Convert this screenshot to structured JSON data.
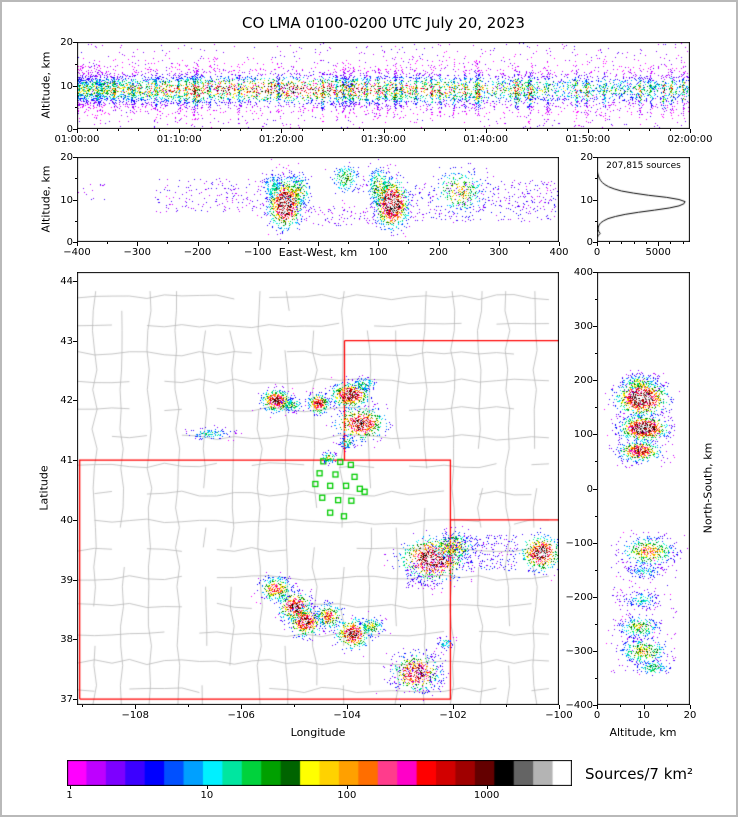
{
  "title": "CO LMA 0100-0200 UTC July 20, 2023",
  "colorbar": {
    "label": "Sources/7 km²",
    "scale": "log",
    "ticks": [
      {
        "f": 0.005,
        "label": "1"
      },
      {
        "f": 0.277,
        "label": "10"
      },
      {
        "f": 0.554,
        "label": "100"
      },
      {
        "f": 0.831,
        "label": "1000"
      }
    ],
    "colors": [
      "#FF00FF",
      "#BE00FF",
      "#7D00FF",
      "#3C00FF",
      "#0000FF",
      "#0050FF",
      "#00A0FF",
      "#00F0FF",
      "#00E6A0",
      "#00D23C",
      "#00A000",
      "#006400",
      "#FFFF00",
      "#FFD200",
      "#FFA000",
      "#FF6E00",
      "#FF3C8C",
      "#FF00C8",
      "#FF0000",
      "#D20000",
      "#A00000",
      "#640000",
      "#000000",
      "#646464",
      "#B4B4B4",
      "#FFFFFF"
    ]
  },
  "chart_data": [
    {
      "id": "time_height",
      "type": "scatter-density",
      "xlabel": "",
      "ylabel": "Altitude, km",
      "xlim": [
        0,
        3600
      ],
      "ylim": [
        0,
        20
      ],
      "xticks": [
        {
          "v": 0,
          "label": "01:00:00"
        },
        {
          "v": 600,
          "label": "01:10:00"
        },
        {
          "v": 1200,
          "label": "01:20:00"
        },
        {
          "v": 1800,
          "label": "01:30:00"
        },
        {
          "v": 2400,
          "label": "01:40:00"
        },
        {
          "v": 3000,
          "label": "01:50:00"
        },
        {
          "v": 3600,
          "label": "02:00:00"
        }
      ],
      "xminor_step": 120,
      "yticks": [
        {
          "v": 0,
          "label": "0"
        },
        {
          "v": 10,
          "label": "10"
        },
        {
          "v": 20,
          "label": "20"
        }
      ],
      "yminor": [
        5,
        15
      ],
      "layers": [
        {
          "type": "sparse",
          "n": 900,
          "x0": 0,
          "x1": 3600,
          "y0": 0.3,
          "y1": 19.7,
          "level": 0.06
        },
        {
          "type": "band",
          "n": 5200,
          "x0": 0,
          "x1": 3600,
          "skew": 1.5,
          "y_mean": 9.2,
          "y_sigma": 2.3,
          "base": 0.3,
          "amp": 0.4,
          "cx": 1300,
          "csx": 1100
        },
        {
          "type": "stripes",
          "count": 46,
          "x0": 80,
          "x1": 3580,
          "n_per": 55,
          "y_mean": 8.8,
          "y_sigma": 3.0,
          "level": 0.55
        }
      ]
    },
    {
      "id": "east_west",
      "type": "scatter-density",
      "xlabel": "East-West, km",
      "xlabel_inline": true,
      "ylabel": "Altitude, km",
      "xlim": [
        -400,
        400
      ],
      "ylim": [
        0,
        20
      ],
      "xticks": [
        {
          "v": -400,
          "label": "−400"
        },
        {
          "v": -300,
          "label": "−300"
        },
        {
          "v": -200,
          "label": "−200"
        },
        {
          "v": -100,
          "label": "−100"
        },
        {
          "v": 0,
          "label": ""
        },
        {
          "v": 100,
          "label": "100"
        },
        {
          "v": 200,
          "label": "200"
        },
        {
          "v": 300,
          "label": "300"
        },
        {
          "v": 400,
          "label": "400"
        }
      ],
      "xminor_step": 50,
      "yticks": [
        {
          "v": 0,
          "label": "0"
        },
        {
          "v": 10,
          "label": "10"
        },
        {
          "v": 20,
          "label": "20"
        }
      ],
      "yminor": [
        5,
        15
      ],
      "layers": [
        {
          "type": "sparse",
          "n": 170,
          "x0": -270,
          "x1": -90,
          "y0": 7,
          "y1": 15,
          "level": 0.08
        },
        {
          "type": "sparse",
          "n": 90,
          "x0": -30,
          "x1": 100,
          "y0": 4,
          "y1": 9,
          "level": 0.07
        },
        {
          "type": "sparse",
          "n": 14,
          "x0": -400,
          "x1": -355,
          "y0": 10,
          "y1": 14,
          "level": 0.07
        },
        {
          "type": "blob",
          "x": -75,
          "y": 13,
          "sx": 10,
          "sy": 2.0,
          "n": 160,
          "core": 0.35
        },
        {
          "type": "blob",
          "x": -35,
          "y": 12,
          "sx": 12,
          "sy": 2.2,
          "n": 260,
          "core": 0.5
        },
        {
          "type": "blob",
          "x": -55,
          "y": 9,
          "sx": 13,
          "sy": 2.7,
          "n": 900,
          "core": 1.0
        },
        {
          "type": "blob",
          "x": 45,
          "y": 15,
          "sx": 12,
          "sy": 1.8,
          "n": 170,
          "core": 0.45
        },
        {
          "type": "blob",
          "x": 100,
          "y": 13,
          "sx": 10,
          "sy": 2.4,
          "n": 260,
          "core": 0.5
        },
        {
          "type": "blob",
          "x": 122,
          "y": 9,
          "sx": 13,
          "sy": 2.7,
          "n": 900,
          "core": 1.0
        },
        {
          "type": "blob",
          "x": 235,
          "y": 12,
          "sx": 22,
          "sy": 2.6,
          "n": 320,
          "core": 0.55
        },
        {
          "type": "sparse",
          "n": 280,
          "x0": 140,
          "x1": 400,
          "y0": 5,
          "y1": 14,
          "level": 0.1
        },
        {
          "type": "sparse",
          "n": 70,
          "x0": 300,
          "x1": 400,
          "y0": 8,
          "y1": 15,
          "level": 0.07
        }
      ]
    },
    {
      "id": "altitude_histogram",
      "type": "line",
      "annotation": "207,815 sources",
      "xlabel": "",
      "ylabel": "",
      "line_color": "#000000",
      "xlim": [
        0,
        7600
      ],
      "ylim": [
        0,
        20
      ],
      "xticks": [
        {
          "v": 0,
          "label": "0"
        },
        {
          "v": 5000,
          "label": "5000"
        }
      ],
      "xminor_step": 1000,
      "yticks": [
        {
          "v": 0,
          "label": "0"
        },
        {
          "v": 10,
          "label": "10"
        },
        {
          "v": 20,
          "label": "20"
        }
      ],
      "yminor": [
        5,
        15
      ],
      "profile": [
        [
          0,
          0
        ],
        [
          0.5,
          5
        ],
        [
          1,
          30
        ],
        [
          1.5,
          90
        ],
        [
          2,
          260
        ],
        [
          2.5,
          140
        ],
        [
          3,
          90
        ],
        [
          3.5,
          110
        ],
        [
          4,
          170
        ],
        [
          4.5,
          300
        ],
        [
          5,
          550
        ],
        [
          5.5,
          900
        ],
        [
          6,
          1500
        ],
        [
          6.5,
          2300
        ],
        [
          7,
          3400
        ],
        [
          7.5,
          4700
        ],
        [
          8,
          5900
        ],
        [
          8.5,
          6700
        ],
        [
          9,
          7100
        ],
        [
          9.5,
          7200
        ],
        [
          10,
          6700
        ],
        [
          10.5,
          5700
        ],
        [
          11,
          4200
        ],
        [
          11.5,
          3000
        ],
        [
          12,
          2000
        ],
        [
          12.5,
          1400
        ],
        [
          13,
          950
        ],
        [
          13.5,
          650
        ],
        [
          14,
          430
        ],
        [
          14.5,
          290
        ],
        [
          15,
          190
        ],
        [
          15.5,
          120
        ],
        [
          16,
          70
        ],
        [
          16.5,
          40
        ],
        [
          17,
          22
        ],
        [
          17.5,
          10
        ],
        [
          18,
          4
        ],
        [
          19,
          1
        ],
        [
          20,
          0
        ]
      ]
    },
    {
      "id": "plan_view",
      "type": "scatter-density",
      "xlabel": "Longitude",
      "ylabel": "Latitude",
      "xlim": [
        -109.1,
        -100.0
      ],
      "ylim": [
        36.9,
        44.15
      ],
      "xticks": [
        {
          "v": -108,
          "label": "−108"
        },
        {
          "v": -106,
          "label": "−106"
        },
        {
          "v": -104,
          "label": "−104"
        },
        {
          "v": -102,
          "label": "−102"
        },
        {
          "v": -100,
          "label": "−100"
        }
      ],
      "xminor_step": 1,
      "yticks": [
        {
          "v": 37,
          "label": "37"
        },
        {
          "v": 38,
          "label": "38"
        },
        {
          "v": 39,
          "label": "39"
        },
        {
          "v": 40,
          "label": "40"
        },
        {
          "v": 41,
          "label": "41"
        },
        {
          "v": 42,
          "label": "42"
        },
        {
          "v": 43,
          "label": "43"
        },
        {
          "v": 44,
          "label": "44"
        }
      ],
      "state_border_color": "#FF0000",
      "station_color": "#00CC00",
      "county_grid": {
        "color": "#B8B8B8",
        "lon_step": 0.52,
        "lat_step": 0.47
      },
      "stations": [
        [
          -104.45,
          40.98
        ],
        [
          -104.13,
          40.97
        ],
        [
          -103.93,
          40.92
        ],
        [
          -104.52,
          40.78
        ],
        [
          -104.22,
          40.76
        ],
        [
          -103.86,
          40.72
        ],
        [
          -104.6,
          40.6
        ],
        [
          -104.32,
          40.57
        ],
        [
          -104.02,
          40.57
        ],
        [
          -103.76,
          40.52
        ],
        [
          -103.67,
          40.47
        ],
        [
          -104.47,
          40.37
        ],
        [
          -104.17,
          40.33
        ],
        [
          -103.92,
          40.32
        ],
        [
          -104.32,
          40.12
        ],
        [
          -104.06,
          40.06
        ]
      ],
      "state_lines": [
        [
          [
            -109.05,
            37.0
          ],
          [
            -102.05,
            37.0
          ],
          [
            -102.05,
            41.0
          ],
          [
            -109.05,
            41.0
          ],
          [
            -109.05,
            37.0
          ]
        ],
        [
          [
            -104.05,
            41.0
          ],
          [
            -104.05,
            43.0
          ]
        ],
        [
          [
            -104.05,
            43.0
          ],
          [
            -100.0,
            43.0
          ]
        ],
        [
          [
            -102.05,
            40.0
          ],
          [
            -100.0,
            40.0
          ]
        ]
      ],
      "layers": [
        {
          "type": "blob",
          "x": -105.35,
          "y": 42.0,
          "sx": 0.13,
          "sy": 0.09,
          "n": 420,
          "core": 0.85
        },
        {
          "type": "blob",
          "x": -105.05,
          "y": 41.93,
          "sx": 0.1,
          "sy": 0.06,
          "n": 120,
          "core": 0.45
        },
        {
          "type": "blob",
          "x": -104.55,
          "y": 41.95,
          "sx": 0.1,
          "sy": 0.08,
          "n": 260,
          "core": 0.8
        },
        {
          "type": "blob",
          "x": -103.95,
          "y": 42.1,
          "sx": 0.17,
          "sy": 0.1,
          "n": 520,
          "core": 0.9
        },
        {
          "type": "blob",
          "x": -103.68,
          "y": 42.28,
          "sx": 0.12,
          "sy": 0.06,
          "n": 100,
          "core": 0.4
        },
        {
          "type": "blob",
          "x": -103.75,
          "y": 41.62,
          "sx": 0.22,
          "sy": 0.13,
          "n": 520,
          "core": 0.85
        },
        {
          "type": "blob",
          "x": -106.6,
          "y": 41.45,
          "sx": 0.22,
          "sy": 0.05,
          "n": 110,
          "core": 0.35
        },
        {
          "type": "blob",
          "x": -104.35,
          "y": 41.05,
          "sx": 0.07,
          "sy": 0.05,
          "n": 70,
          "core": 0.5
        },
        {
          "type": "blob",
          "x": -104.0,
          "y": 41.3,
          "sx": 0.08,
          "sy": 0.06,
          "n": 80,
          "core": 0.4
        },
        {
          "type": "blob",
          "x": -102.4,
          "y": 39.35,
          "sx": 0.28,
          "sy": 0.17,
          "n": 800,
          "core": 0.95
        },
        {
          "type": "blob",
          "x": -102.0,
          "y": 39.55,
          "sx": 0.2,
          "sy": 0.12,
          "n": 300,
          "core": 0.6
        },
        {
          "type": "sparse",
          "n": 260,
          "x0": -102.2,
          "x1": -100.8,
          "y0": 39.15,
          "y1": 39.75,
          "level": 0.12
        },
        {
          "type": "blob",
          "x": -100.35,
          "y": 39.45,
          "sx": 0.18,
          "sy": 0.14,
          "n": 520,
          "core": 0.9
        },
        {
          "type": "sparse",
          "n": 110,
          "x0": -102.9,
          "x1": -102.2,
          "y0": 38.85,
          "y1": 39.3,
          "level": 0.1
        },
        {
          "type": "blob",
          "x": -105.35,
          "y": 38.85,
          "sx": 0.14,
          "sy": 0.1,
          "n": 300,
          "core": 0.7
        },
        {
          "type": "blob",
          "x": -105.0,
          "y": 38.55,
          "sx": 0.15,
          "sy": 0.12,
          "n": 400,
          "core": 0.85
        },
        {
          "type": "blob",
          "x": -104.8,
          "y": 38.3,
          "sx": 0.15,
          "sy": 0.12,
          "n": 400,
          "core": 0.85
        },
        {
          "type": "blob",
          "x": -104.35,
          "y": 38.4,
          "sx": 0.12,
          "sy": 0.1,
          "n": 250,
          "core": 0.7
        },
        {
          "type": "blob",
          "x": -103.9,
          "y": 38.1,
          "sx": 0.16,
          "sy": 0.12,
          "n": 400,
          "core": 0.85
        },
        {
          "type": "blob",
          "x": -103.55,
          "y": 38.22,
          "sx": 0.12,
          "sy": 0.08,
          "n": 150,
          "core": 0.5
        },
        {
          "type": "blob",
          "x": -102.15,
          "y": 37.95,
          "sx": 0.08,
          "sy": 0.06,
          "n": 60,
          "core": 0.35
        },
        {
          "type": "blob",
          "x": -102.7,
          "y": 37.45,
          "sx": 0.22,
          "sy": 0.15,
          "n": 460,
          "core": 0.85
        },
        {
          "type": "sparse",
          "n": 130,
          "x0": -103.2,
          "x1": -102.2,
          "y0": 37.1,
          "y1": 37.8,
          "level": 0.1
        }
      ]
    },
    {
      "id": "north_south",
      "type": "scatter-density",
      "xlabel": "Altitude, km",
      "ylabel": "North-South, km",
      "xlim": [
        0,
        20
      ],
      "ylim": [
        -400,
        400
      ],
      "xticks": [
        {
          "v": 0,
          "label": "0"
        },
        {
          "v": 10,
          "label": "10"
        },
        {
          "v": 20,
          "label": "20"
        }
      ],
      "xminor": [
        5,
        15
      ],
      "yticks": [
        {
          "v": 400,
          "label": "400"
        },
        {
          "v": 300,
          "label": "300"
        },
        {
          "v": 200,
          "label": "200"
        },
        {
          "v": 100,
          "label": "100"
        },
        {
          "v": 0,
          "label": "0"
        },
        {
          "v": -100,
          "label": "−100"
        },
        {
          "v": -200,
          "label": "−200"
        },
        {
          "v": -300,
          "label": "−300"
        },
        {
          "v": -400,
          "label": "−400"
        }
      ],
      "yminor_step": 50,
      "layers": [
        {
          "type": "sparse",
          "n": 120,
          "x0": 4,
          "x1": 16,
          "y0": 40,
          "y1": 215,
          "level": 0.08
        },
        {
          "type": "blob",
          "x": 9,
          "y": 196,
          "sx": 2.0,
          "sy": 8,
          "n": 200,
          "core": 0.5
        },
        {
          "type": "blob",
          "x": 9.5,
          "y": 168,
          "sx": 2.6,
          "sy": 15,
          "n": 900,
          "core": 1.0
        },
        {
          "type": "blob",
          "x": 10,
          "y": 112,
          "sx": 2.4,
          "sy": 11,
          "n": 750,
          "core": 1.0
        },
        {
          "type": "blob",
          "x": 9,
          "y": 70,
          "sx": 2.2,
          "sy": 9,
          "n": 420,
          "core": 0.8
        },
        {
          "type": "sparse",
          "n": 150,
          "x0": 3,
          "x1": 17,
          "y0": -340,
          "y1": -90,
          "level": 0.07
        },
        {
          "type": "blob",
          "x": 11,
          "y": -115,
          "sx": 2.8,
          "sy": 13,
          "n": 430,
          "core": 0.62
        },
        {
          "type": "blob",
          "x": 10,
          "y": -152,
          "sx": 2.0,
          "sy": 7,
          "n": 120,
          "core": 0.32
        },
        {
          "type": "blob",
          "x": 9.5,
          "y": -205,
          "sx": 2.0,
          "sy": 8,
          "n": 140,
          "core": 0.35
        },
        {
          "type": "blob",
          "x": 9,
          "y": -255,
          "sx": 2.2,
          "sy": 10,
          "n": 230,
          "core": 0.5
        },
        {
          "type": "blob",
          "x": 10,
          "y": -300,
          "sx": 2.5,
          "sy": 12,
          "n": 310,
          "core": 0.55
        },
        {
          "type": "blob",
          "x": 12,
          "y": -330,
          "sx": 2.0,
          "sy": 7,
          "n": 130,
          "core": 0.4
        }
      ]
    }
  ]
}
